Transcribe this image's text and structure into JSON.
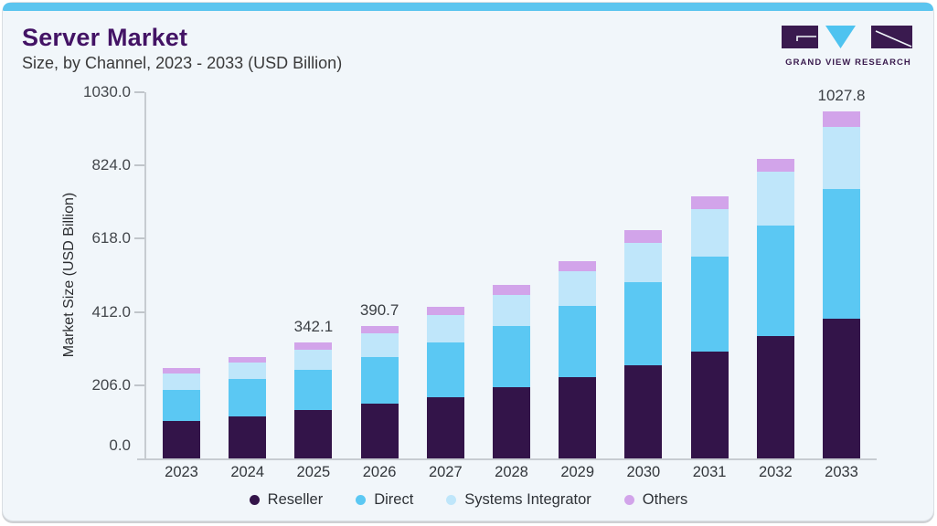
{
  "header": {
    "title": "Server Market",
    "subtitle": "Size, by Channel, 2023 - 2033 (USD Billion)"
  },
  "logo": {
    "text": "GRAND VIEW RESEARCH",
    "purple": "#3a1a4f",
    "blue": "#4ec3f0"
  },
  "accent_bar_color": "#5cc5ef",
  "chart_data": {
    "type": "bar",
    "stacked": true,
    "title": "Server Market Size, by Channel, 2023 - 2033 (USD Billion)",
    "xlabel": "",
    "ylabel": "Market Size (USD Billion)",
    "ylim": [
      0,
      1030
    ],
    "yticks": [
      0.0,
      206.0,
      412.0,
      618.0,
      824.0,
      1030.0
    ],
    "grid": false,
    "legend_position": "bottom",
    "categories": [
      "2023",
      "2024",
      "2025",
      "2026",
      "2027",
      "2028",
      "2029",
      "2030",
      "2031",
      "2032",
      "2033"
    ],
    "series": [
      {
        "name": "Reseller",
        "color": "#331449",
        "values": [
          110.8,
          124.3,
          142.8,
          161.6,
          181.1,
          210.8,
          240.6,
          275.7,
          316.2,
          362.2,
          412.2
        ]
      },
      {
        "name": "Direct",
        "color": "#5bc8f3",
        "values": [
          91.9,
          110.8,
          118.5,
          137.4,
          162.2,
          181.1,
          210.8,
          246.0,
          281.1,
          327.1,
          385.1
        ]
      },
      {
        "name": "Systems Integrator",
        "color": "#bfe6fa",
        "values": [
          48.7,
          48.7,
          59.3,
          70.1,
          81.1,
          91.9,
          102.7,
          116.2,
          140.6,
          159.5,
          184.4
        ]
      },
      {
        "name": "Others",
        "color": "#d2a4ea",
        "values": [
          16.2,
          16.2,
          21.5,
          21.6,
          24.3,
          29.7,
          29.7,
          37.8,
          37.8,
          37.8,
          46.1
        ]
      }
    ],
    "total_labels": {
      "2025": "342.1",
      "2026": "390.7",
      "2033": "1027.8"
    }
  }
}
